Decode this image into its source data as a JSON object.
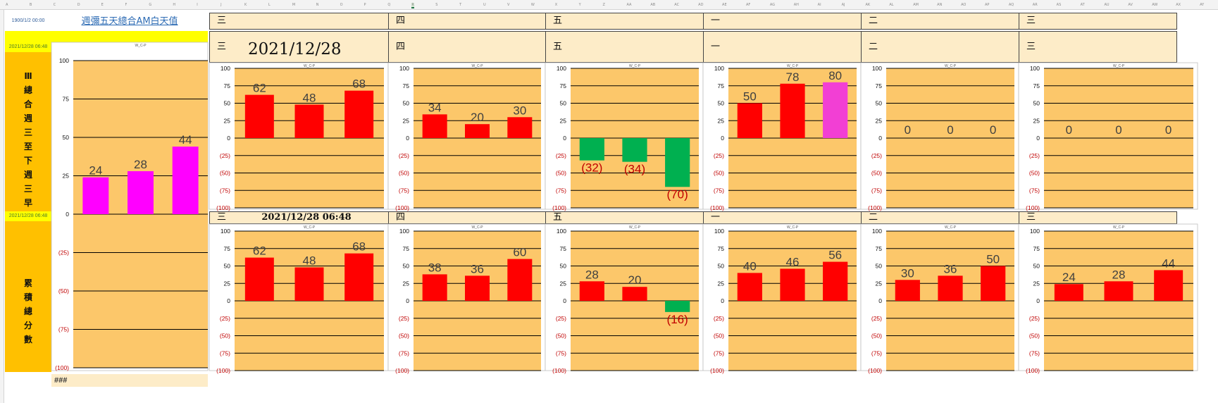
{
  "spreadsheet": {
    "column_headers": [
      "A",
      "B",
      "C",
      "D",
      "E",
      "F",
      "G",
      "H",
      "I",
      "J",
      "K",
      "L",
      "M",
      "N",
      "O",
      "P",
      "Q",
      "R",
      "S",
      "T",
      "U",
      "V",
      "W",
      "X",
      "Y",
      "Z",
      "AA",
      "AB",
      "AC",
      "AD",
      "AE",
      "AF",
      "AG",
      "AH",
      "AI",
      "AJ",
      "AK",
      "AL",
      "AM",
      "AN",
      "AO",
      "AP",
      "AQ",
      "AR",
      "AS",
      "AT",
      "AU",
      "AV",
      "AW",
      "AX",
      "AY"
    ],
    "selected_column": "R",
    "top_date": "1900/1/2 00:00",
    "title_link": "週彌五天總合AM白天值",
    "side_date_1": "2021/12/28 06:48",
    "side_date_2": "2021/12/28 06:48",
    "side_label_1": "Ⅲ總合週三至下週三早",
    "side_label_2": "累積總分數",
    "hash": "###",
    "row1_days": [
      "三",
      "四",
      "五",
      "一",
      "二",
      "三"
    ],
    "row2_days": [
      "三",
      "四",
      "五",
      "一",
      "二",
      "三"
    ],
    "row3_days": [
      "三",
      "四",
      "五",
      "一",
      "二",
      "三"
    ],
    "datetime_big": "2021/12/28 06:48",
    "datetime_small": "2021/12/28 06:48"
  },
  "colors": {
    "plot_bg": "#fcc76a",
    "red": "#ff0000",
    "green": "#00b050",
    "magenta": "#ff00ff",
    "pink": "#f23fd4",
    "neg_tick": "#c00000"
  },
  "chart_data": [
    {
      "id": "left-summary",
      "type": "bar",
      "title": "W_C-P",
      "values": [
        24,
        28,
        44
      ],
      "colors": [
        "magenta",
        "magenta",
        "magenta"
      ],
      "ylim": [
        -100,
        100
      ],
      "yticks": [
        100,
        75,
        50,
        25,
        0,
        -25,
        -50,
        -75,
        -100
      ],
      "tick_labels": [
        "100",
        "75",
        "50",
        "25",
        "0",
        "(25)",
        "(50)",
        "(75)",
        "(100)"
      ]
    },
    {
      "id": "r1c1",
      "type": "bar",
      "title": "W_C-P",
      "values": [
        62,
        48,
        68
      ],
      "colors": [
        "red",
        "red",
        "red"
      ],
      "ylim": [
        -100,
        100
      ],
      "yticks": [
        100,
        75,
        50,
        25,
        0,
        -25,
        -50,
        -75,
        -100
      ],
      "tick_labels": [
        "100",
        "75",
        "50",
        "25",
        "0",
        "(25)",
        "(50)",
        "(75)",
        "(100)"
      ]
    },
    {
      "id": "r1c2",
      "type": "bar",
      "title": "W_C-P",
      "values": [
        34,
        20,
        30
      ],
      "colors": [
        "red",
        "red",
        "red"
      ],
      "ylim": [
        -100,
        100
      ],
      "yticks": [
        100,
        75,
        50,
        25,
        0,
        -25,
        -50,
        -75,
        -100
      ],
      "tick_labels": [
        "100",
        "75",
        "50",
        "25",
        "0",
        "(25)",
        "(50)",
        "(75)",
        "(100)"
      ]
    },
    {
      "id": "r1c3",
      "type": "bar",
      "title": "W_C-P",
      "values": [
        -32,
        -34,
        -70
      ],
      "colors": [
        "green",
        "green",
        "green"
      ],
      "ylim": [
        -100,
        100
      ],
      "yticks": [
        100,
        75,
        50,
        25,
        0,
        -25,
        -50,
        -75,
        -100
      ],
      "tick_labels": [
        "100",
        "75",
        "50",
        "25",
        "0",
        "(25)",
        "(50)",
        "(75)",
        "(100)"
      ]
    },
    {
      "id": "r1c4",
      "type": "bar",
      "title": "W_C-P",
      "values": [
        50,
        78,
        80
      ],
      "colors": [
        "red",
        "red",
        "pink"
      ],
      "ylim": [
        -100,
        100
      ],
      "yticks": [
        100,
        75,
        50,
        25,
        0,
        -25,
        -50,
        -75,
        -100
      ],
      "tick_labels": [
        "100",
        "75",
        "50",
        "25",
        "0",
        "(25)",
        "(50)",
        "(75)",
        "(100)"
      ]
    },
    {
      "id": "r1c5",
      "type": "bar",
      "title": "W_C-P",
      "values": [
        0,
        0,
        0
      ],
      "colors": [
        "red",
        "red",
        "red"
      ],
      "ylim": [
        -100,
        100
      ],
      "yticks": [
        100,
        75,
        50,
        25,
        0,
        -25,
        -50,
        -75,
        -100
      ],
      "tick_labels": [
        "100",
        "75",
        "50",
        "25",
        "0",
        "(25)",
        "(50)",
        "(75)",
        "(100)"
      ]
    },
    {
      "id": "r1c6",
      "type": "bar",
      "title": "W_C-P",
      "values": [
        0,
        0,
        0
      ],
      "colors": [
        "red",
        "red",
        "red"
      ],
      "ylim": [
        -100,
        100
      ],
      "yticks": [
        100,
        75,
        50,
        25,
        0,
        -25,
        -50,
        -75,
        -100
      ],
      "tick_labels": [
        "100",
        "75",
        "50",
        "25",
        "0",
        "(25)",
        "(50)",
        "(75)",
        "(100)"
      ]
    },
    {
      "id": "r2c1",
      "type": "bar",
      "title": "W_C-P",
      "values": [
        62,
        48,
        68
      ],
      "colors": [
        "red",
        "red",
        "red"
      ],
      "ylim": [
        -100,
        100
      ],
      "yticks": [
        100,
        75,
        50,
        25,
        0,
        -25,
        -50,
        -75,
        -100
      ],
      "tick_labels": [
        "100",
        "75",
        "50",
        "25",
        "0",
        "(25)",
        "(50)",
        "(75)",
        "(100)"
      ]
    },
    {
      "id": "r2c2",
      "type": "bar",
      "title": "W_C-P",
      "values": [
        38,
        36,
        60
      ],
      "colors": [
        "red",
        "red",
        "red"
      ],
      "ylim": [
        -100,
        100
      ],
      "yticks": [
        100,
        75,
        50,
        25,
        0,
        -25,
        -50,
        -75,
        -100
      ],
      "tick_labels": [
        "100",
        "75",
        "50",
        "25",
        "0",
        "(25)",
        "(50)",
        "(75)",
        "(100)"
      ]
    },
    {
      "id": "r2c3",
      "type": "bar",
      "title": "W_C-P",
      "values": [
        28,
        20,
        -16
      ],
      "colors": [
        "red",
        "red",
        "green"
      ],
      "ylim": [
        -100,
        100
      ],
      "yticks": [
        100,
        75,
        50,
        25,
        0,
        -25,
        -50,
        -75,
        -100
      ],
      "tick_labels": [
        "100",
        "75",
        "50",
        "25",
        "0",
        "(25)",
        "(50)",
        "(75)",
        "(100)"
      ]
    },
    {
      "id": "r2c4",
      "type": "bar",
      "title": "W_C-P",
      "values": [
        40,
        46,
        56
      ],
      "colors": [
        "red",
        "red",
        "red"
      ],
      "ylim": [
        -100,
        100
      ],
      "yticks": [
        100,
        75,
        50,
        25,
        0,
        -25,
        -50,
        -75,
        -100
      ],
      "tick_labels": [
        "100",
        "75",
        "50",
        "25",
        "0",
        "(25)",
        "(50)",
        "(75)",
        "(100)"
      ]
    },
    {
      "id": "r2c5",
      "type": "bar",
      "title": "W_C-P",
      "values": [
        30,
        36,
        50
      ],
      "colors": [
        "red",
        "red",
        "red"
      ],
      "ylim": [
        -100,
        100
      ],
      "yticks": [
        100,
        75,
        50,
        25,
        0,
        -25,
        -50,
        -75,
        -100
      ],
      "tick_labels": [
        "100",
        "75",
        "50",
        "25",
        "0",
        "(25)",
        "(50)",
        "(75)",
        "(100)"
      ]
    },
    {
      "id": "r2c6",
      "type": "bar",
      "title": "W_C-P",
      "values": [
        24,
        28,
        44
      ],
      "colors": [
        "red",
        "red",
        "red"
      ],
      "ylim": [
        -100,
        100
      ],
      "yticks": [
        100,
        75,
        50,
        25,
        0,
        -25,
        -50,
        -75,
        -100
      ],
      "tick_labels": [
        "100",
        "75",
        "50",
        "25",
        "0",
        "(25)",
        "(50)",
        "(75)",
        "(100)"
      ]
    }
  ]
}
